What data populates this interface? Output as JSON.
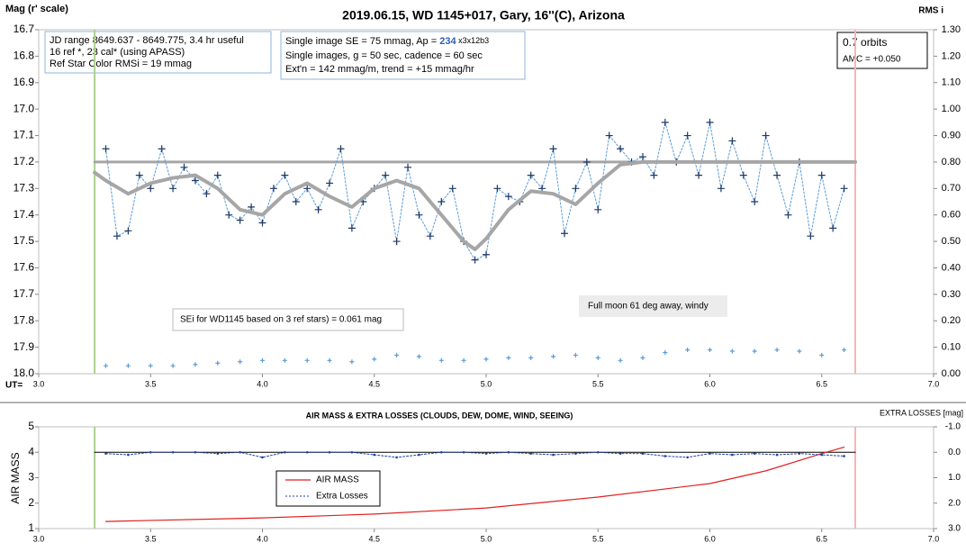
{
  "chart_data": [
    {
      "type": "line",
      "title": "2019.06.15, WD 1145+017, Gary, 16''(C), Arizona",
      "y_label": "Mag (r' scale)",
      "y2_label": "RMS i",
      "x_label": "UT=",
      "xlim": [
        3,
        7
      ],
      "xticks": [
        {
          "value": 3,
          "label": "3.0"
        },
        3.5,
        {
          "value": 4,
          "label": "4.0"
        },
        4.5,
        {
          "value": 5,
          "label": "5.0"
        },
        5.5,
        {
          "value": 6,
          "label": "6.0"
        },
        6.5,
        {
          "value": 7,
          "label": "7.0"
        }
      ],
      "ylim": [
        16.7,
        18
      ],
      "y_inverted": true,
      "yticks": [
        16.7,
        16.8,
        16.9,
        {
          "value": 17,
          "label": "17.0"
        },
        17.1,
        17.2,
        17.3,
        17.4,
        17.5,
        17.6,
        17.7,
        17.8,
        17.9,
        {
          "value": 18,
          "label": "18.0"
        }
      ],
      "y2lim": [
        0,
        1.3
      ],
      "y2ticks": [
        {
          "value": 0,
          "label": "0.00"
        },
        {
          "value": 0.1,
          "label": "0.10"
        },
        {
          "value": 0.2,
          "label": "0.20"
        },
        {
          "value": 0.3,
          "label": "0.30"
        },
        {
          "value": 0.4,
          "label": "0.40"
        },
        {
          "value": 0.5,
          "label": "0.50"
        },
        {
          "value": 0.6,
          "label": "0.60"
        },
        {
          "value": 0.7,
          "label": "0.70"
        },
        {
          "value": 0.8,
          "label": "0.80"
        },
        {
          "value": 0.9,
          "label": "0.90"
        },
        {
          "value": 1,
          "label": "1.00"
        },
        {
          "value": 1.1,
          "label": "1.10"
        },
        {
          "value": 1.2,
          "label": "1.20"
        },
        {
          "value": 1.3,
          "label": "1.30"
        }
      ],
      "vlines": [
        {
          "value": 3.25,
          "color": "#a9d18e"
        },
        {
          "value": 6.65,
          "color": "#f4b6b6"
        }
      ],
      "series": [
        {
          "color": "#a6a6a6",
          "width": 3,
          "x": [
            3.25,
            6.65
          ],
          "values": [
            17.2,
            17.2
          ]
        },
        {
          "color": "#5b9bd5",
          "marker_color": "#1f3864",
          "marker": "plus",
          "dash": true,
          "width": 1,
          "x": [
            3.3,
            3.35,
            3.4,
            3.45,
            3.5,
            3.55,
            3.6,
            3.65,
            3.7,
            3.75,
            3.8,
            3.85,
            3.9,
            3.95,
            4.0,
            4.05,
            4.1,
            4.15,
            4.2,
            4.25,
            4.3,
            4.35,
            4.4,
            4.45,
            4.5,
            4.55,
            4.6,
            4.65,
            4.7,
            4.75,
            4.8,
            4.85,
            4.9,
            4.95,
            5.0,
            5.05,
            5.1,
            5.15,
            5.2,
            5.25,
            5.3,
            5.35,
            5.4,
            5.45,
            5.5,
            5.55,
            5.6,
            5.65,
            5.7,
            5.75,
            5.8,
            5.85,
            5.9,
            5.95,
            6.0,
            6.05,
            6.1,
            6.15,
            6.2,
            6.25,
            6.3,
            6.35,
            6.4,
            6.45,
            6.5,
            6.55,
            6.6
          ],
          "values": [
            17.15,
            17.48,
            17.46,
            17.25,
            17.3,
            17.15,
            17.3,
            17.22,
            17.27,
            17.32,
            17.25,
            17.4,
            17.42,
            17.37,
            17.43,
            17.3,
            17.25,
            17.35,
            17.3,
            17.38,
            17.28,
            17.15,
            17.45,
            17.35,
            17.3,
            17.25,
            17.5,
            17.22,
            17.4,
            17.48,
            17.35,
            17.3,
            17.5,
            17.57,
            17.55,
            17.3,
            17.33,
            17.35,
            17.25,
            17.3,
            17.15,
            17.47,
            17.3,
            17.2,
            17.38,
            17.1,
            17.15,
            17.2,
            17.18,
            17.25,
            17.05,
            17.2,
            17.1,
            17.25,
            17.05,
            17.3,
            17.12,
            17.25,
            17.35,
            17.1,
            17.25,
            17.4,
            17.2,
            17.48,
            17.25,
            17.45,
            17.3
          ]
        },
        {
          "color": "#a6a6a6",
          "width": 4,
          "x": [
            3.25,
            3.3,
            3.4,
            3.5,
            3.6,
            3.7,
            3.8,
            3.9,
            4.0,
            4.1,
            4.2,
            4.3,
            4.4,
            4.5,
            4.6,
            4.7,
            4.8,
            4.9,
            4.95,
            5.0,
            5.1,
            5.2,
            5.3,
            5.4,
            5.5,
            5.6,
            5.7,
            6.65
          ],
          "values": [
            17.24,
            17.27,
            17.32,
            17.28,
            17.26,
            17.25,
            17.3,
            17.38,
            17.4,
            17.32,
            17.28,
            17.33,
            17.37,
            17.3,
            17.27,
            17.3,
            17.4,
            17.5,
            17.53,
            17.49,
            17.38,
            17.31,
            17.32,
            17.36,
            17.28,
            17.21,
            17.2,
            17.2
          ]
        },
        {
          "axis": "y2",
          "color": "#5b9bd5",
          "marker_color": "#5b9bd5",
          "marker": "plus",
          "marker_only": true,
          "x": [
            3.3,
            3.4,
            3.5,
            3.6,
            3.7,
            3.8,
            3.9,
            4.0,
            4.1,
            4.2,
            4.3,
            4.4,
            4.5,
            4.6,
            4.7,
            4.8,
            4.9,
            5.0,
            5.1,
            5.2,
            5.3,
            5.4,
            5.5,
            5.6,
            5.7,
            5.8,
            5.9,
            6.0,
            6.1,
            6.2,
            6.3,
            6.4,
            6.5,
            6.6
          ],
          "values": [
            0.03,
            0.03,
            0.03,
            0.03,
            0.035,
            0.04,
            0.045,
            0.05,
            0.05,
            0.05,
            0.05,
            0.045,
            0.055,
            0.07,
            0.065,
            0.05,
            0.05,
            0.055,
            0.06,
            0.06,
            0.065,
            0.07,
            0.06,
            0.05,
            0.06,
            0.08,
            0.09,
            0.09,
            0.085,
            0.085,
            0.09,
            0.085,
            0.07,
            0.09
          ]
        }
      ],
      "annotations": [
        "JD range 8649.637 - 8649.775, 3.4 hr useful",
        "16 ref *, 23 cal* (using APASS)",
        "Ref Star Color RMSi = 19 mmag",
        "Single image SE = 75 mmag, Ap = ",
        "234",
        " x3x12b3",
        "Single images, g = 50 sec, cadence = 60 sec",
        "Ext'n = 142 mmag/m, trend = +15 mmag/hr",
        "0.7 orbits",
        "AMC = +0.050",
        "SEi for WD1145 based on 3 ref stars) = 0.061 mag",
        "Full moon 61 deg away, windy"
      ]
    },
    {
      "type": "line",
      "title": "AIR MASS & EXTRA LOSSES (CLOUDS, DEW, DOME, WIND, SEEING)",
      "y_label": "AIR MASS",
      "y2_label": "EXTRA LOSSES [mag]",
      "xlim": [
        3,
        7
      ],
      "xticks": [
        {
          "value": 3,
          "label": "3.0"
        },
        3.5,
        {
          "value": 4,
          "label": "4.0"
        },
        4.5,
        {
          "value": 5,
          "label": "5.0"
        },
        5.5,
        {
          "value": 6,
          "label": "6.0"
        },
        6.5,
        {
          "value": 7,
          "label": "7.0"
        }
      ],
      "ylim": [
        1,
        5
      ],
      "yticks": [
        1,
        2,
        3,
        4,
        5
      ],
      "y2lim": [
        -1,
        3
      ],
      "y2_inverted": true,
      "y2ticks": [
        {
          "value": -1,
          "label": "-1.0"
        },
        {
          "value": 0,
          "label": "0.0"
        },
        {
          "value": 1,
          "label": "1.0"
        },
        {
          "value": 2,
          "label": "2.0"
        },
        {
          "value": 3,
          "label": "3.0"
        }
      ],
      "vlines": [
        {
          "value": 3.25,
          "color": "#a9d18e"
        },
        {
          "value": 6.65,
          "color": "#f4b6b6"
        }
      ],
      "legend": "left",
      "series": [
        {
          "axis": "y2",
          "color": "#000000",
          "width": 1,
          "x": [
            3.25,
            6.65
          ],
          "values": [
            0,
            0
          ]
        },
        {
          "name": "AIR MASS",
          "color": "#e02020",
          "width": 1.2,
          "x": [
            3.3,
            3.5,
            4.0,
            4.5,
            5.0,
            5.5,
            6.0,
            6.25,
            6.5,
            6.6
          ],
          "values": [
            1.28,
            1.32,
            1.42,
            1.57,
            1.81,
            2.24,
            2.77,
            3.27,
            3.95,
            4.2
          ]
        },
        {
          "name": "Extra Losses",
          "axis": "y2",
          "color": "#1f3fa0",
          "marker_color": "#1f3fa0",
          "marker": "dot",
          "dash": true,
          "width": 1,
          "x": [
            3.3,
            3.4,
            3.5,
            3.6,
            3.7,
            3.8,
            3.9,
            4.0,
            4.1,
            4.2,
            4.3,
            4.4,
            4.5,
            4.6,
            4.7,
            4.8,
            4.9,
            5.0,
            5.1,
            5.2,
            5.3,
            5.4,
            5.5,
            5.6,
            5.7,
            5.8,
            5.9,
            6.0,
            6.1,
            6.2,
            6.3,
            6.4,
            6.5,
            6.6
          ],
          "values": [
            0.05,
            0.1,
            0.0,
            0.0,
            0.0,
            0.05,
            0.0,
            0.2,
            0.0,
            0.0,
            0.0,
            0.0,
            0.1,
            0.2,
            0.1,
            0.0,
            0.0,
            0.05,
            0.0,
            0.05,
            0.1,
            0.05,
            0.0,
            0.05,
            0.05,
            0.15,
            0.2,
            0.05,
            0.1,
            0.05,
            0.1,
            0.05,
            0.1,
            0.15
          ]
        }
      ]
    }
  ]
}
